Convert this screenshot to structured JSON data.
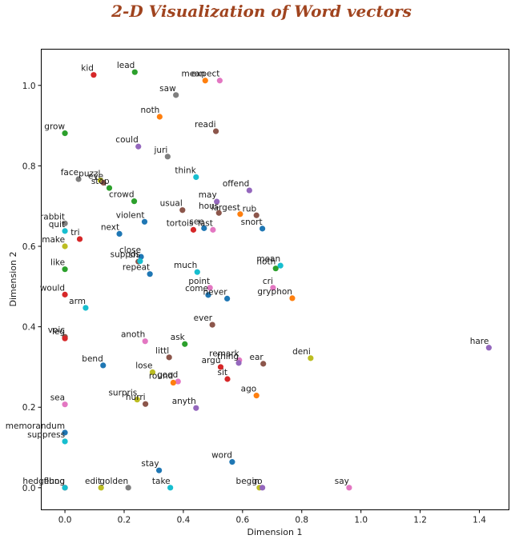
{
  "chart_data": {
    "type": "scatter",
    "title": "2-D Visualization of Word vectors",
    "xlabel": "Dimension 1",
    "ylabel": "Dimension 2",
    "xlim": [
      -0.08,
      1.5
    ],
    "ylim": [
      -0.055,
      1.09
    ],
    "xticks": [
      "0.0",
      "0.2",
      "0.4",
      "0.6",
      "0.8",
      "1.0",
      "1.2",
      "1.4"
    ],
    "yticks": [
      "0.0",
      "0.2",
      "0.4",
      "0.6",
      "0.8",
      "1.0"
    ],
    "grid": false,
    "points": [
      {
        "word": "kid",
        "x": 0.097,
        "y": 1.026,
        "color": "#d62728"
      },
      {
        "word": "lead",
        "x": 0.236,
        "y": 1.033,
        "color": "#2ca02c"
      },
      {
        "word": "mean",
        "x": 0.474,
        "y": 1.012,
        "color": "#ff7f0e"
      },
      {
        "word": "expect",
        "x": 0.523,
        "y": 1.012,
        "color": "#e377c2"
      },
      {
        "word": "saw",
        "x": 0.375,
        "y": 0.976,
        "color": "#7f7f7f"
      },
      {
        "word": "noth",
        "x": 0.32,
        "y": 0.922,
        "color": "#ff7f0e"
      },
      {
        "word": "readi",
        "x": 0.51,
        "y": 0.886,
        "color": "#8c564b"
      },
      {
        "word": "grow",
        "x": 0.0,
        "y": 0.881,
        "color": "#2ca02c"
      },
      {
        "word": "could",
        "x": 0.248,
        "y": 0.848,
        "color": "#9467bd"
      },
      {
        "word": "juri",
        "x": 0.347,
        "y": 0.823,
        "color": "#7f7f7f"
      },
      {
        "word": "think",
        "x": 0.443,
        "y": 0.772,
        "color": "#17becf"
      },
      {
        "word": "face",
        "x": 0.046,
        "y": 0.767,
        "color": "#7f7f7f"
      },
      {
        "word": "puzzl",
        "x": 0.12,
        "y": 0.764,
        "color": "#bcbd22"
      },
      {
        "word": "eye",
        "x": 0.13,
        "y": 0.758,
        "color": "#8c564b"
      },
      {
        "word": "stop",
        "x": 0.15,
        "y": 0.745,
        "color": "#2ca02c"
      },
      {
        "word": "offend",
        "x": 0.623,
        "y": 0.739,
        "color": "#9467bd"
      },
      {
        "word": "crowd",
        "x": 0.234,
        "y": 0.712,
        "color": "#2ca02c"
      },
      {
        "word": "may",
        "x": 0.513,
        "y": 0.711,
        "color": "#9467bd"
      },
      {
        "word": "usual",
        "x": 0.397,
        "y": 0.69,
        "color": "#8c564b"
      },
      {
        "word": "hous",
        "x": 0.52,
        "y": 0.683,
        "color": "#8c564b"
      },
      {
        "word": "largest",
        "x": 0.592,
        "y": 0.68,
        "color": "#ff7f0e"
      },
      {
        "word": "rub",
        "x": 0.647,
        "y": 0.677,
        "color": "#8c564b"
      },
      {
        "word": "violent",
        "x": 0.269,
        "y": 0.661,
        "color": "#1f77b4"
      },
      {
        "word": "rabbit",
        "x": 0.0,
        "y": 0.657,
        "color": "#7f7f7f"
      },
      {
        "word": "quit",
        "x": 0.0,
        "y": 0.638,
        "color": "#17becf"
      },
      {
        "word": "tortois",
        "x": 0.434,
        "y": 0.641,
        "color": "#d62728"
      },
      {
        "word": "see",
        "x": 0.47,
        "y": 0.645,
        "color": "#1f77b4"
      },
      {
        "word": "last",
        "x": 0.5,
        "y": 0.641,
        "color": "#e377c2"
      },
      {
        "word": "snort",
        "x": 0.667,
        "y": 0.644,
        "color": "#1f77b4"
      },
      {
        "word": "tri",
        "x": 0.05,
        "y": 0.618,
        "color": "#d62728"
      },
      {
        "word": "next",
        "x": 0.184,
        "y": 0.631,
        "color": "#1f77b4"
      },
      {
        "word": "make",
        "x": 0.0,
        "y": 0.6,
        "color": "#bcbd22"
      },
      {
        "word": "close",
        "x": 0.257,
        "y": 0.574,
        "color": "#1f77b4"
      },
      {
        "word": "sh",
        "x": 0.248,
        "y": 0.562,
        "color": "#8c564b"
      },
      {
        "word": "suppos",
        "x": 0.254,
        "y": 0.563,
        "color": "#17becf"
      },
      {
        "word": "repeat",
        "x": 0.287,
        "y": 0.531,
        "color": "#1f77b4"
      },
      {
        "word": "much",
        "x": 0.447,
        "y": 0.536,
        "color": "#17becf"
      },
      {
        "word": "noth",
        "x": 0.712,
        "y": 0.545,
        "color": "#2ca02c"
      },
      {
        "word": "mean",
        "x": 0.728,
        "y": 0.552,
        "color": "#17becf"
      },
      {
        "word": "like",
        "x": 0.0,
        "y": 0.543,
        "color": "#2ca02c"
      },
      {
        "word": "would",
        "x": 0.0,
        "y": 0.48,
        "color": "#d62728"
      },
      {
        "word": "point",
        "x": 0.49,
        "y": 0.497,
        "color": "#e377c2"
      },
      {
        "word": "come",
        "x": 0.484,
        "y": 0.479,
        "color": "#1f77b4"
      },
      {
        "word": "never",
        "x": 0.548,
        "y": 0.47,
        "color": "#1f77b4"
      },
      {
        "word": "cri",
        "x": 0.703,
        "y": 0.497,
        "color": "#e377c2"
      },
      {
        "word": "gryphon",
        "x": 0.768,
        "y": 0.471,
        "color": "#ff7f0e"
      },
      {
        "word": "arm",
        "x": 0.07,
        "y": 0.447,
        "color": "#17becf"
      },
      {
        "word": "ever",
        "x": 0.498,
        "y": 0.405,
        "color": "#8c564b"
      },
      {
        "word": "voic",
        "x": 0.0,
        "y": 0.375,
        "color": "#8c564b"
      },
      {
        "word": "leg",
        "x": 0.0,
        "y": 0.371,
        "color": "#d62728"
      },
      {
        "word": "anoth",
        "x": 0.271,
        "y": 0.364,
        "color": "#e377c2"
      },
      {
        "word": "ask",
        "x": 0.405,
        "y": 0.357,
        "color": "#2ca02c"
      },
      {
        "word": "littl",
        "x": 0.352,
        "y": 0.324,
        "color": "#8c564b"
      },
      {
        "word": "hare",
        "x": 1.432,
        "y": 0.348,
        "color": "#9467bd"
      },
      {
        "word": "deni",
        "x": 0.83,
        "y": 0.322,
        "color": "#bcbd22"
      },
      {
        "word": "remark",
        "x": 0.589,
        "y": 0.317,
        "color": "#e377c2"
      },
      {
        "word": "thing",
        "x": 0.587,
        "y": 0.31,
        "color": "#9467bd"
      },
      {
        "word": "ear",
        "x": 0.67,
        "y": 0.308,
        "color": "#8c564b"
      },
      {
        "word": "bend",
        "x": 0.129,
        "y": 0.304,
        "color": "#1f77b4"
      },
      {
        "word": "argu",
        "x": 0.526,
        "y": 0.3,
        "color": "#d62728"
      },
      {
        "word": "lose",
        "x": 0.296,
        "y": 0.287,
        "color": "#bcbd22"
      },
      {
        "word": "sit",
        "x": 0.549,
        "y": 0.27,
        "color": "#d62728"
      },
      {
        "word": "good",
        "x": 0.382,
        "y": 0.264,
        "color": "#e377c2"
      },
      {
        "word": "round",
        "x": 0.366,
        "y": 0.261,
        "color": "#ff7f0e"
      },
      {
        "word": "ago",
        "x": 0.647,
        "y": 0.229,
        "color": "#ff7f0e"
      },
      {
        "word": "surpris",
        "x": 0.244,
        "y": 0.219,
        "color": "#bcbd22"
      },
      {
        "word": "hurri",
        "x": 0.272,
        "y": 0.208,
        "color": "#8c564b"
      },
      {
        "word": "sea",
        "x": 0.0,
        "y": 0.207,
        "color": "#e377c2"
      },
      {
        "word": "anyth",
        "x": 0.443,
        "y": 0.198,
        "color": "#9467bd"
      },
      {
        "word": "memorandum",
        "x": 0.0,
        "y": 0.137,
        "color": "#1f77b4"
      },
      {
        "word": "suppress",
        "x": 0.0,
        "y": 0.115,
        "color": "#17becf"
      },
      {
        "word": "word",
        "x": 0.565,
        "y": 0.064,
        "color": "#1f77b4"
      },
      {
        "word": "stay",
        "x": 0.318,
        "y": 0.043,
        "color": "#1f77b4"
      },
      {
        "word": "hedgehog",
        "x": 0.0,
        "y": 0.0,
        "color": "#d62728"
      },
      {
        "word": "flung",
        "x": 0.0,
        "y": 0.0,
        "color": "#17becf"
      },
      {
        "word": "edit",
        "x": 0.122,
        "y": 0.0,
        "color": "#bcbd22"
      },
      {
        "word": "golden",
        "x": 0.214,
        "y": 0.0,
        "color": "#7f7f7f"
      },
      {
        "word": "take",
        "x": 0.356,
        "y": 0.0,
        "color": "#17becf"
      },
      {
        "word": "begin",
        "x": 0.657,
        "y": 0.0,
        "color": "#bcbd22"
      },
      {
        "word": "go",
        "x": 0.667,
        "y": 0.0,
        "color": "#9467bd"
      },
      {
        "word": "say",
        "x": 0.96,
        "y": 0.0,
        "color": "#e377c2"
      }
    ]
  }
}
